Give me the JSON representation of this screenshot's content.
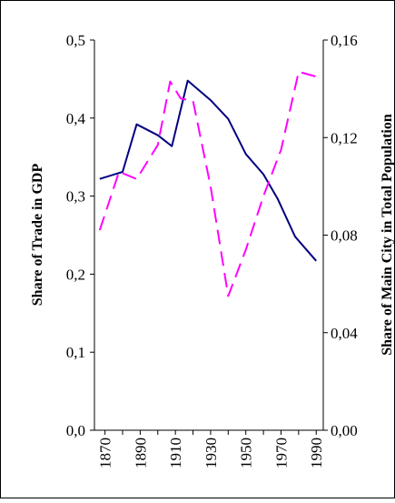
{
  "chart_data": {
    "type": "line",
    "title": "",
    "x": [
      1870,
      1880,
      1890,
      1900,
      1910,
      1920,
      1930,
      1940,
      1950,
      1960,
      1970,
      1980,
      1990
    ],
    "x_tick_labels": [
      "1870",
      "1890",
      "1910",
      "1930",
      "1950",
      "1970",
      "1990"
    ],
    "xlabel": "",
    "y_left": {
      "label": "Share of Trade in GDP",
      "range": [
        0,
        0.5
      ],
      "tick_labels": [
        "0,0",
        "0,1",
        "0,2",
        "0,3",
        "0,4",
        "0,5"
      ]
    },
    "y_right": {
      "label": "Share of Main City in Total Population",
      "range": [
        0,
        0.16
      ],
      "tick_labels": [
        "0,00",
        "0,04",
        "0,08",
        "0,12",
        "0,16"
      ]
    },
    "grid": false,
    "legend": "none",
    "series": [
      {
        "axis": "left",
        "style": "solid",
        "color": "#000080",
        "points": [
          [
            1867,
            0.322
          ],
          [
            1880,
            0.331
          ],
          [
            1888,
            0.392
          ],
          [
            1900,
            0.378
          ],
          [
            1908,
            0.364
          ],
          [
            1917,
            0.448
          ],
          [
            1930,
            0.423
          ],
          [
            1940,
            0.399
          ],
          [
            1950,
            0.354
          ],
          [
            1960,
            0.328
          ],
          [
            1968,
            0.297
          ],
          [
            1978,
            0.248
          ],
          [
            1990,
            0.217
          ]
        ]
      },
      {
        "axis": "right",
        "style": "dashed",
        "color": "#ff00ff",
        "points": [
          [
            1867,
            0.082
          ],
          [
            1878,
            0.106
          ],
          [
            1888,
            0.103
          ],
          [
            1900,
            0.117
          ],
          [
            1907,
            0.143
          ],
          [
            1913,
            0.136
          ],
          [
            1920,
            0.135
          ],
          [
            1930,
            0.1
          ],
          [
            1940,
            0.055
          ],
          [
            1950,
            0.074
          ],
          [
            1960,
            0.096
          ],
          [
            1970,
            0.115
          ],
          [
            1980,
            0.147
          ],
          [
            1990,
            0.145
          ]
        ]
      }
    ]
  }
}
